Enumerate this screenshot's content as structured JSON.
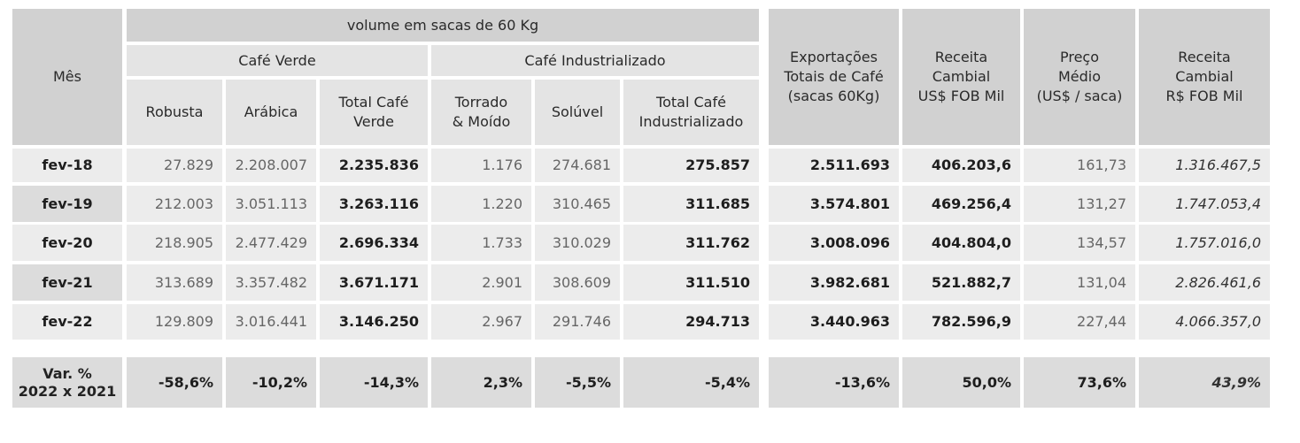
{
  "header": {
    "mes": "Mês",
    "volume": "volume em sacas de 60 Kg",
    "cafe_verde": "Café Verde",
    "cafe_industrializado": "Café Industrializado",
    "robusta": "Robusta",
    "arabica": "Arábica",
    "total_verde_1": "Total Café",
    "total_verde_2": "Verde",
    "torrado_1": "Torrado",
    "torrado_2": "& Moído",
    "soluvel": "Solúvel",
    "total_ind_1": "Total Café",
    "total_ind_2": "Industrializado",
    "exportacoes_1": "Exportações",
    "exportacoes_2": "Totais de Café",
    "exportacoes_3": "(sacas 60Kg)",
    "receita_usd_1": "Receita",
    "receita_usd_2": "Cambial",
    "receita_usd_3": "US$ FOB Mil",
    "preco_1": "Preço",
    "preco_2": "Médio",
    "preco_3": "(US$ / saca)",
    "receita_brl_1": "Receita",
    "receita_brl_2": "Cambial",
    "receita_brl_3": "R$ FOB Mil"
  },
  "rows": [
    {
      "mes": "fev-18",
      "robusta": "27.829",
      "arabica": "2.208.007",
      "total_verde": "2.235.836",
      "torrado": "1.176",
      "soluvel": "274.681",
      "total_ind": "275.857",
      "exportacoes": "2.511.693",
      "receita_usd": "406.203,6",
      "preco": "161,73",
      "receita_brl": "1.316.467,5"
    },
    {
      "mes": "fev-19",
      "robusta": "212.003",
      "arabica": "3.051.113",
      "total_verde": "3.263.116",
      "torrado": "1.220",
      "soluvel": "310.465",
      "total_ind": "311.685",
      "exportacoes": "3.574.801",
      "receita_usd": "469.256,4",
      "preco": "131,27",
      "receita_brl": "1.747.053,4"
    },
    {
      "mes": "fev-20",
      "robusta": "218.905",
      "arabica": "2.477.429",
      "total_verde": "2.696.334",
      "torrado": "1.733",
      "soluvel": "310.029",
      "total_ind": "311.762",
      "exportacoes": "3.008.096",
      "receita_usd": "404.804,0",
      "preco": "134,57",
      "receita_brl": "1.757.016,0"
    },
    {
      "mes": "fev-21",
      "robusta": "313.689",
      "arabica": "3.357.482",
      "total_verde": "3.671.171",
      "torrado": "2.901",
      "soluvel": "308.609",
      "total_ind": "311.510",
      "exportacoes": "3.982.681",
      "receita_usd": "521.882,7",
      "preco": "131,04",
      "receita_brl": "2.826.461,6"
    },
    {
      "mes": "fev-22",
      "robusta": "129.809",
      "arabica": "3.016.441",
      "total_verde": "3.146.250",
      "torrado": "2.967",
      "soluvel": "291.746",
      "total_ind": "294.713",
      "exportacoes": "3.440.963",
      "receita_usd": "782.596,9",
      "preco": "227,44",
      "receita_brl": "4.066.357,0"
    }
  ],
  "variation": {
    "label_1": "Var. %",
    "label_2": "2022 x 2021",
    "robusta": "-58,6%",
    "arabica": "-10,2%",
    "total_verde": "-14,3%",
    "torrado": "2,3%",
    "soluvel": "-5,5%",
    "total_ind": "-5,4%",
    "exportacoes": "-13,6%",
    "receita_usd": "50,0%",
    "preco": "73,6%",
    "receita_brl": "43,9%"
  }
}
